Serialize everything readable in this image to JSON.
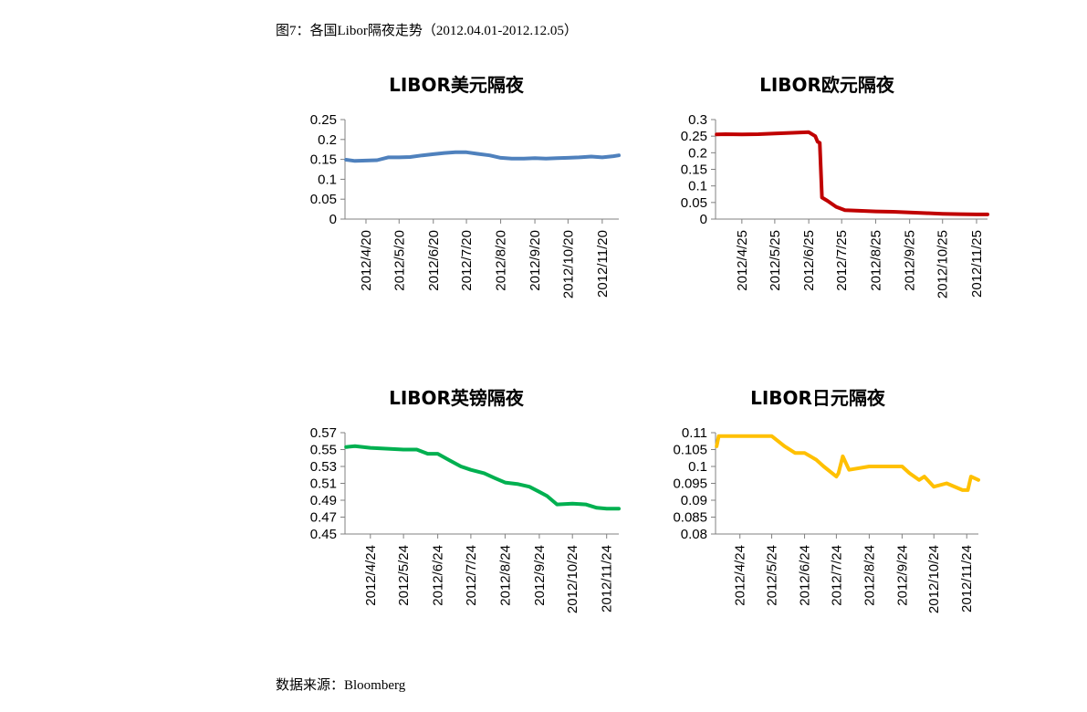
{
  "figure": {
    "caption": "图7：各国Libor隔夜走势（2012.04.01-2012.12.05）",
    "source": "数据来源：Bloomberg"
  },
  "chart_data": [
    {
      "type": "line",
      "title": "LIBOR美元隔夜",
      "color": "#4F81BD",
      "ylim": [
        0,
        0.25
      ],
      "yticks": [
        "0.25",
        "0.2",
        "0.15",
        "0.1",
        "0.05",
        "0"
      ],
      "xticks": [
        "2012/4/20",
        "2012/5/20",
        "2012/6/20",
        "2012/7/20",
        "2012/8/20",
        "2012/9/20",
        "2012/10/20",
        "2012/11/20"
      ],
      "x": [
        "2012-04-02",
        "2012-04-10",
        "2012-04-20",
        "2012-04-30",
        "2012-05-10",
        "2012-05-20",
        "2012-05-30",
        "2012-06-10",
        "2012-06-20",
        "2012-06-30",
        "2012-07-10",
        "2012-07-20",
        "2012-07-30",
        "2012-08-10",
        "2012-08-20",
        "2012-08-30",
        "2012-09-10",
        "2012-09-20",
        "2012-09-30",
        "2012-10-10",
        "2012-10-20",
        "2012-10-30",
        "2012-11-10",
        "2012-11-20",
        "2012-11-30",
        "2012-12-05"
      ],
      "values": [
        0.149,
        0.146,
        0.147,
        0.148,
        0.155,
        0.155,
        0.156,
        0.16,
        0.163,
        0.166,
        0.168,
        0.168,
        0.164,
        0.16,
        0.154,
        0.152,
        0.152,
        0.153,
        0.152,
        0.153,
        0.154,
        0.155,
        0.157,
        0.155,
        0.158,
        0.16
      ]
    },
    {
      "type": "line",
      "title": "LIBOR欧元隔夜",
      "color": "#C00000",
      "ylim": [
        0,
        0.3
      ],
      "yticks": [
        "0.3",
        "0.25",
        "0.2",
        "0.15",
        "0.1",
        "0.05",
        "0"
      ],
      "xticks": [
        "2012/4/25",
        "2012/5/25",
        "2012/6/25",
        "2012/7/25",
        "2012/8/25",
        "2012/9/25",
        "2012/10/25",
        "2012/11/25"
      ],
      "x": [
        "2012-04-02",
        "2012-04-10",
        "2012-04-25",
        "2012-05-10",
        "2012-05-25",
        "2012-06-10",
        "2012-06-25",
        "2012-07-01",
        "2012-07-03",
        "2012-07-05",
        "2012-07-07",
        "2012-07-12",
        "2012-07-20",
        "2012-07-28",
        "2012-08-10",
        "2012-08-25",
        "2012-09-10",
        "2012-09-25",
        "2012-10-10",
        "2012-10-25",
        "2012-11-10",
        "2012-11-25",
        "2012-12-05"
      ],
      "values": [
        0.255,
        0.256,
        0.255,
        0.256,
        0.258,
        0.26,
        0.262,
        0.25,
        0.233,
        0.23,
        0.065,
        0.055,
        0.037,
        0.027,
        0.025,
        0.023,
        0.022,
        0.02,
        0.018,
        0.016,
        0.015,
        0.014,
        0.014
      ]
    },
    {
      "type": "line",
      "title": "LIBOR英镑隔夜",
      "color": "#00B050",
      "ylim": [
        0.45,
        0.57
      ],
      "yticks": [
        "0.57",
        "0.55",
        "0.53",
        "0.51",
        "0.49",
        "0.47",
        "0.45"
      ],
      "xticks": [
        "2012/4/24",
        "2012/5/24",
        "2012/6/24",
        "2012/7/24",
        "2012/8/24",
        "2012/9/24",
        "2012/10/24",
        "2012/11/24"
      ],
      "x": [
        "2012-04-02",
        "2012-04-10",
        "2012-04-24",
        "2012-05-10",
        "2012-05-24",
        "2012-06-05",
        "2012-06-15",
        "2012-06-24",
        "2012-07-05",
        "2012-07-15",
        "2012-07-24",
        "2012-08-05",
        "2012-08-15",
        "2012-08-24",
        "2012-09-05",
        "2012-09-15",
        "2012-09-24",
        "2012-10-01",
        "2012-10-10",
        "2012-10-24",
        "2012-11-05",
        "2012-11-15",
        "2012-11-24",
        "2012-12-05"
      ],
      "values": [
        0.553,
        0.554,
        0.552,
        0.551,
        0.55,
        0.55,
        0.545,
        0.545,
        0.537,
        0.53,
        0.526,
        0.522,
        0.516,
        0.511,
        0.509,
        0.506,
        0.5,
        0.495,
        0.485,
        0.486,
        0.485,
        0.481,
        0.48,
        0.48
      ]
    },
    {
      "type": "line",
      "title": "LIBOR日元隔夜",
      "color": "#FFC000",
      "ylim": [
        0.08,
        0.11
      ],
      "yticks": [
        "0.11",
        "0.105",
        "0.1",
        "0.095",
        "0.09",
        "0.085",
        "0.08"
      ],
      "xticks": [
        "2012/4/24",
        "2012/5/24",
        "2012/6/24",
        "2012/7/24",
        "2012/8/24",
        "2012/9/24",
        "2012/10/24",
        "2012/11/24"
      ],
      "x": [
        "2012-04-02",
        "2012-04-04",
        "2012-04-24",
        "2012-05-24",
        "2012-06-05",
        "2012-06-15",
        "2012-06-24",
        "2012-07-05",
        "2012-07-12",
        "2012-07-24",
        "2012-07-26",
        "2012-07-30",
        "2012-08-05",
        "2012-08-24",
        "2012-09-05",
        "2012-09-20",
        "2012-09-24",
        "2012-10-01",
        "2012-10-10",
        "2012-10-15",
        "2012-10-24",
        "2012-11-05",
        "2012-11-20",
        "2012-11-25",
        "2012-11-28",
        "2012-12-05"
      ],
      "values": [
        0.106,
        0.109,
        0.109,
        0.109,
        0.106,
        0.104,
        0.104,
        0.102,
        0.1,
        0.097,
        0.098,
        0.103,
        0.099,
        0.1,
        0.1,
        0.1,
        0.1,
        0.098,
        0.096,
        0.097,
        0.094,
        0.095,
        0.093,
        0.093,
        0.097,
        0.096
      ]
    }
  ]
}
